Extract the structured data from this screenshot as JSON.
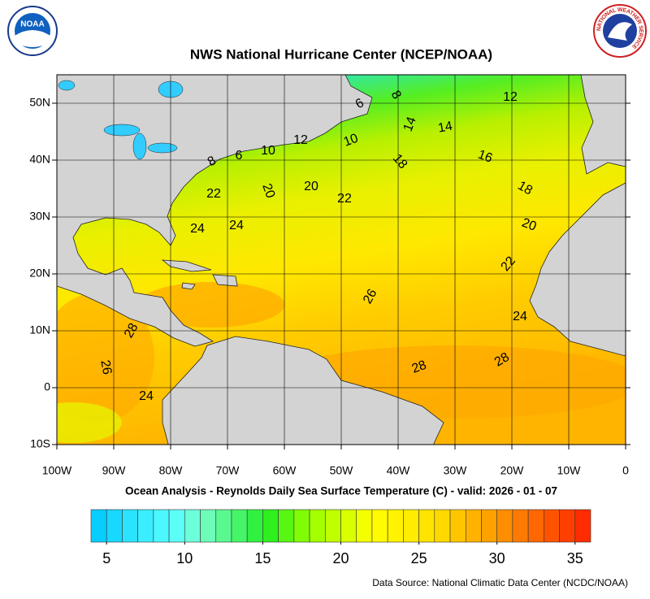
{
  "title": "NWS National Hurricane Center (NCEP/NOAA)",
  "subtitle": "Ocean Analysis - Reynolds Daily Sea Surface Temperature (C) - valid: 2026 - 01 - 07",
  "source": "Data Source: National Climatic Data Center (NCDC/NOAA)",
  "logos": {
    "noaa": "NOAA",
    "nws": "NATIONAL WEATHER SERVICE"
  },
  "map": {
    "xlim": [
      -100,
      0
    ],
    "ylim": [
      -10,
      55
    ],
    "grid": true,
    "xticks": [
      {
        "value": -100,
        "label": "100W"
      },
      {
        "value": -90,
        "label": "90W"
      },
      {
        "value": -80,
        "label": "80W"
      },
      {
        "value": -70,
        "label": "70W"
      },
      {
        "value": -60,
        "label": "60W"
      },
      {
        "value": -50,
        "label": "50W"
      },
      {
        "value": -40,
        "label": "40W"
      },
      {
        "value": -30,
        "label": "30W"
      },
      {
        "value": -20,
        "label": "20W"
      },
      {
        "value": -10,
        "label": "10W"
      },
      0
    ],
    "yticks": [
      {
        "value": -10,
        "label": "10S"
      },
      0,
      {
        "value": 10,
        "label": "10N"
      },
      {
        "value": 20,
        "label": "20N"
      },
      {
        "value": 30,
        "label": "30N"
      },
      {
        "value": 40,
        "label": "40N"
      },
      {
        "value": 50,
        "label": "50N"
      }
    ],
    "contour_labels": [
      6,
      8,
      12,
      14,
      14,
      10,
      12,
      10,
      6,
      8,
      16,
      18,
      20,
      20,
      22,
      22,
      18,
      24,
      24,
      20,
      22,
      26,
      24,
      28,
      28,
      28,
      26,
      24
    ]
  },
  "colorbar": {
    "range": [
      4,
      36
    ],
    "ticks": [
      5,
      10,
      15,
      20,
      25,
      30,
      35
    ]
  }
}
